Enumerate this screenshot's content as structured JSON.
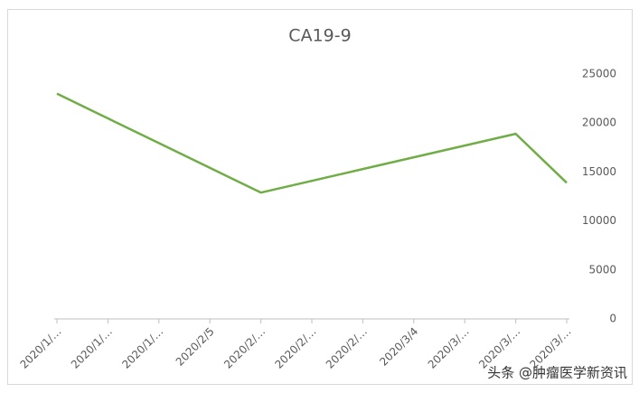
{
  "chart_data": {
    "type": "line",
    "title": "CA19-9",
    "categories": [
      "2020/1/…",
      "2020/1/…",
      "2020/1/…",
      "2020/2/5",
      "2020/2/…",
      "2020/2/…",
      "2020/2/…",
      "2020/3/4",
      "2020/3/…",
      "2020/3/…",
      "2020/3/…"
    ],
    "values": [
      23000,
      20475,
      17950,
      15425,
      12900,
      14100,
      15300,
      16500,
      17700,
      18900,
      13900
    ],
    "color": "#70ad47",
    "ylim": [
      0,
      25000
    ],
    "yticks": [
      0,
      5000,
      10000,
      15000,
      20000,
      25000
    ],
    "grid": false,
    "y_axis_side": "right"
  },
  "watermark": "头条 @肿瘤医学新资讯"
}
